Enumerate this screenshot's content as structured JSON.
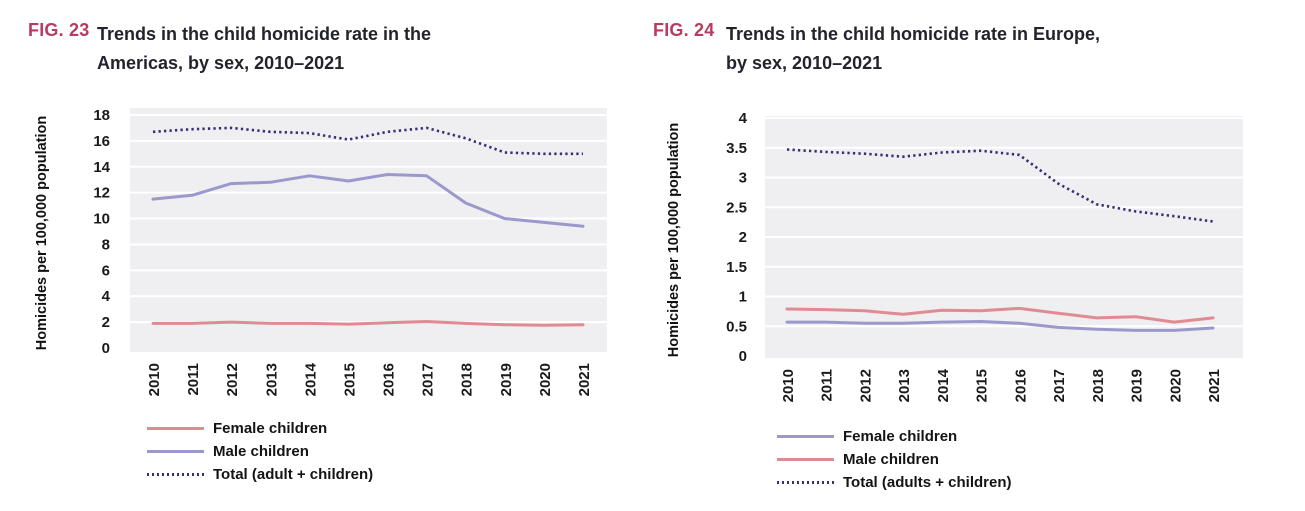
{
  "page": {
    "background": "#ffffff",
    "plot_background": "#efeef0",
    "gridline_color": "#ffffff"
  },
  "figures": [
    {
      "label": "FIG. 23",
      "title_lines": [
        "Trends in the child homicide rate in the",
        "Americas, by sex, 2010–2021"
      ],
      "label_color": "#b83b60"
    },
    {
      "label": "FIG. 24",
      "title_lines": [
        "Trends in the child homicide rate in Europe,",
        "by sex, 2010–2021"
      ],
      "label_color": "#b83b60"
    }
  ],
  "chart_data": [
    {
      "type": "line",
      "title": "Trends in the child homicide rate in the Americas, by sex, 2010–2021",
      "region": "Americas",
      "xlabel": "",
      "ylabel": "Homicides per 100,000 population",
      "x": [
        2010,
        2011,
        2012,
        2013,
        2014,
        2015,
        2016,
        2017,
        2018,
        2019,
        2020,
        2021
      ],
      "ylim": [
        0,
        18
      ],
      "yticks": [
        0,
        2,
        4,
        6,
        8,
        10,
        12,
        14,
        16,
        18
      ],
      "grid": true,
      "legend_position": "bottom-left",
      "series": [
        {
          "name": "Female children",
          "style": "solid",
          "color": "#e08b94",
          "values": [
            1.9,
            1.9,
            2.0,
            1.9,
            1.9,
            1.85,
            1.95,
            2.05,
            1.9,
            1.8,
            1.75,
            1.8
          ]
        },
        {
          "name": "Male children",
          "style": "solid",
          "color": "#9b99cc",
          "values": [
            11.5,
            11.8,
            12.7,
            12.8,
            13.3,
            12.9,
            13.4,
            13.3,
            11.2,
            10.0,
            9.7,
            9.4
          ]
        },
        {
          "name": "Total (adult + children)",
          "style": "dotted",
          "color": "#3c2b75",
          "values": [
            16.7,
            16.9,
            17.0,
            16.7,
            16.6,
            16.1,
            16.7,
            17.0,
            16.2,
            15.1,
            15.0,
            15.0
          ]
        }
      ]
    },
    {
      "type": "line",
      "title": "Trends in the child homicide rate in Europe, by sex, 2010–2021",
      "region": "Europe",
      "xlabel": "",
      "ylabel": "Homicides per 100,000 population",
      "x": [
        2010,
        2011,
        2012,
        2013,
        2014,
        2015,
        2016,
        2017,
        2018,
        2019,
        2020,
        2021
      ],
      "ylim": [
        0,
        4
      ],
      "yticks": [
        0,
        0.5,
        1,
        1.5,
        2,
        2.5,
        3,
        3.5,
        4
      ],
      "grid": true,
      "legend_position": "bottom-left",
      "series": [
        {
          "name": "Female children",
          "style": "solid",
          "color": "#9b99cc",
          "values": [
            0.57,
            0.57,
            0.55,
            0.55,
            0.57,
            0.58,
            0.55,
            0.48,
            0.45,
            0.43,
            0.43,
            0.47
          ]
        },
        {
          "name": "Male children",
          "style": "solid",
          "color": "#e08b94",
          "values": [
            0.79,
            0.78,
            0.76,
            0.7,
            0.77,
            0.76,
            0.8,
            0.72,
            0.64,
            0.66,
            0.57,
            0.64
          ]
        },
        {
          "name": "Total (adults + children)",
          "style": "dotted",
          "color": "#3c2b75",
          "values": [
            3.47,
            3.43,
            3.4,
            3.35,
            3.42,
            3.45,
            3.38,
            2.9,
            2.55,
            2.43,
            2.35,
            2.26
          ]
        }
      ]
    }
  ]
}
